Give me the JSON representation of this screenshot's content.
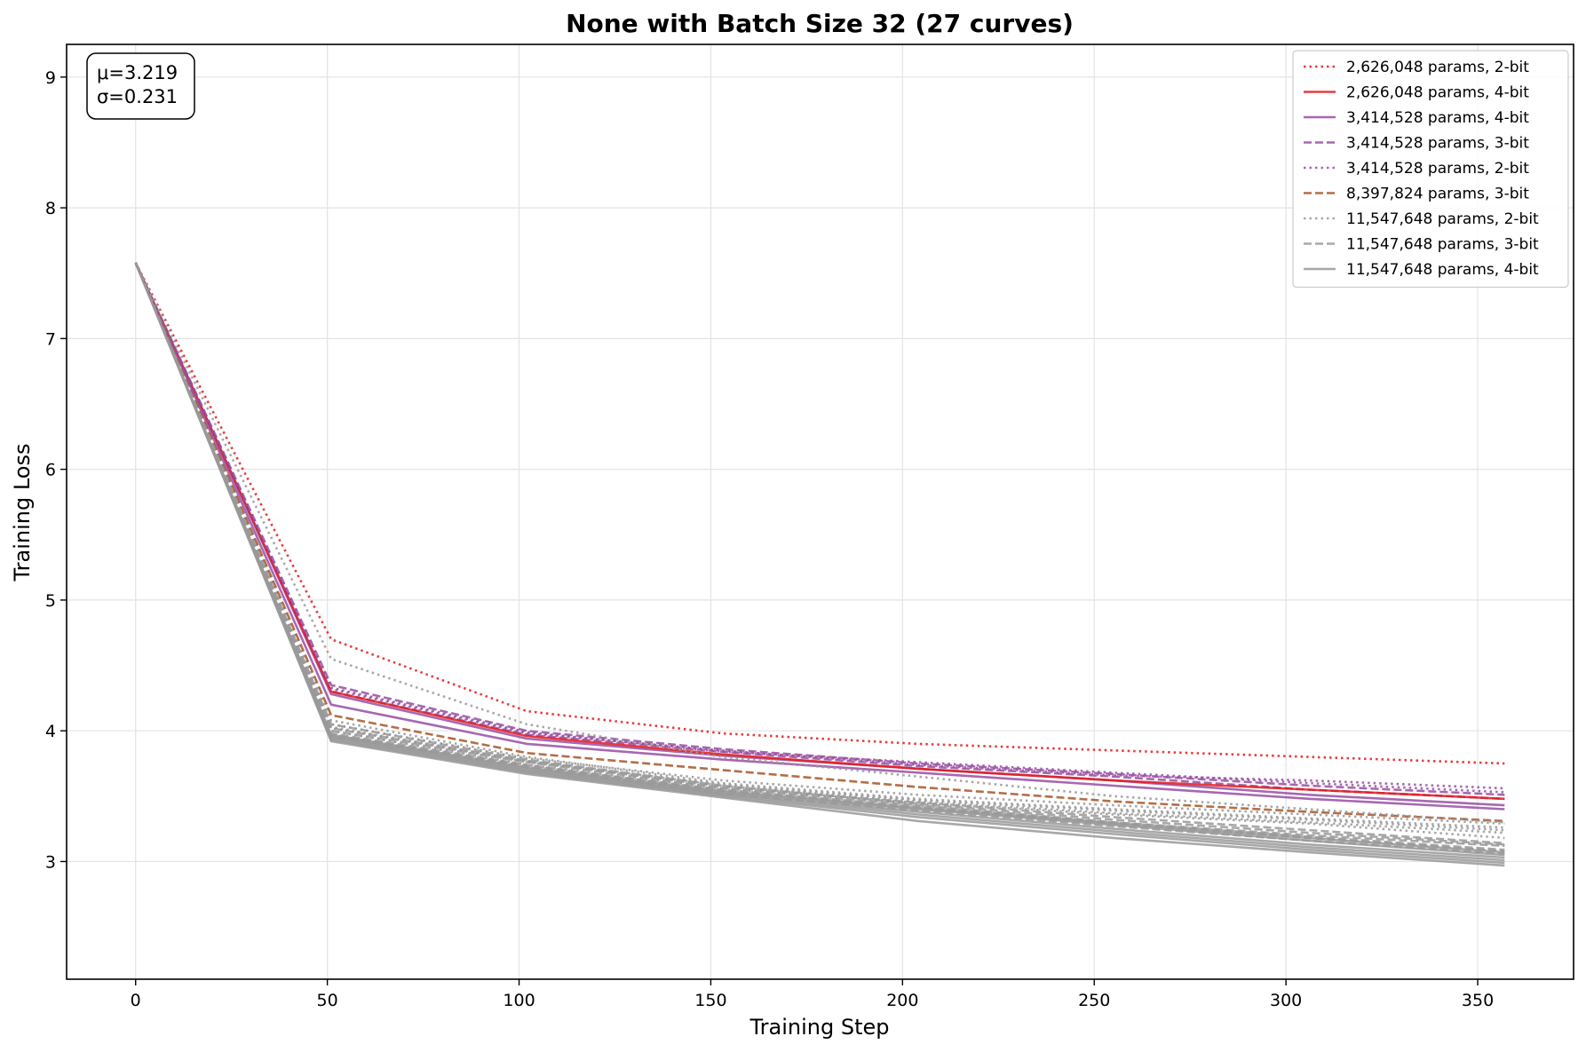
{
  "chart_data": {
    "type": "line",
    "title": "None with Batch Size 32 (27 curves)",
    "xlabel": "Training Step",
    "ylabel": "Training Loss",
    "xlim": [
      -18,
      375
    ],
    "ylim": [
      2.1,
      9.25
    ],
    "xticks": [
      0,
      50,
      100,
      150,
      200,
      250,
      300,
      350
    ],
    "yticks": [
      3,
      4,
      5,
      6,
      7,
      8,
      9
    ],
    "grid": true,
    "legend_position": "top-right",
    "stats": {
      "mu": "μ=3.219",
      "sigma": "σ=0.231"
    },
    "x": [
      0,
      51,
      102,
      153,
      204,
      255,
      306,
      357
    ],
    "series": [
      {
        "name": "2,626,048 params, 2-bit",
        "color": "#e41a1c",
        "dash": "dotted",
        "legend": true,
        "values": [
          7.58,
          4.7,
          4.15,
          3.98,
          3.9,
          3.85,
          3.8,
          3.75
        ]
      },
      {
        "name": "2,626,048 params, 4-bit",
        "color": "#e41a1c",
        "dash": "solid",
        "legend": true,
        "values": [
          7.58,
          4.3,
          3.96,
          3.82,
          3.71,
          3.62,
          3.55,
          3.48
        ]
      },
      {
        "name": "3,414,528 params, 4-bit",
        "color": "#984ea3",
        "dash": "solid",
        "legend": true,
        "values": [
          7.58,
          4.2,
          3.9,
          3.78,
          3.68,
          3.58,
          3.48,
          3.4
        ]
      },
      {
        "name": "3,414,528 params, 3-bit",
        "color": "#984ea3",
        "dash": "dashed",
        "legend": true,
        "values": [
          7.58,
          4.35,
          4.0,
          3.86,
          3.75,
          3.67,
          3.58,
          3.51
        ]
      },
      {
        "name": "3,414,528 params, 2-bit",
        "color": "#984ea3",
        "dash": "dotted",
        "legend": true,
        "values": [
          7.58,
          4.32,
          3.98,
          3.85,
          3.74,
          3.66,
          3.62,
          3.56
        ]
      },
      {
        "name": "8,397,824 params, 3-bit",
        "color": "#a65628",
        "dash": "dashed",
        "legend": true,
        "values": [
          7.58,
          4.12,
          3.83,
          3.7,
          3.57,
          3.46,
          3.38,
          3.31
        ]
      },
      {
        "name": "11,547,648 params, 2-bit",
        "color": "#999999",
        "dash": "dotted",
        "legend": true,
        "values": [
          7.58,
          4.55,
          4.05,
          3.8,
          3.65,
          3.5,
          3.4,
          3.3
        ]
      },
      {
        "name": "11,547,648 params, 3-bit",
        "color": "#999999",
        "dash": "dashed",
        "legend": true,
        "values": [
          7.58,
          4.05,
          3.78,
          3.58,
          3.44,
          3.32,
          3.22,
          3.13
        ]
      },
      {
        "name": "11,547,648 params, 4-bit",
        "color": "#999999",
        "dash": "solid",
        "legend": true,
        "values": [
          7.58,
          3.92,
          3.67,
          3.49,
          3.31,
          3.18,
          3.07,
          2.97
        ]
      },
      {
        "color": "#984ea3",
        "dash": "solid",
        "legend": false,
        "values": [
          7.58,
          4.28,
          3.94,
          3.81,
          3.71,
          3.62,
          3.51,
          3.43
        ]
      },
      {
        "color": "#984ea3",
        "dash": "dashed",
        "legend": false,
        "values": [
          7.58,
          4.3,
          3.97,
          3.84,
          3.73,
          3.65,
          3.55,
          3.48
        ]
      },
      {
        "color": "#984ea3",
        "dash": "dotted",
        "legend": false,
        "values": [
          7.58,
          4.33,
          3.99,
          3.84,
          3.76,
          3.68,
          3.6,
          3.53
        ]
      },
      {
        "color": "#999999",
        "dash": "dotted",
        "legend": false,
        "values": [
          7.58,
          4.08,
          3.8,
          3.6,
          3.48,
          3.4,
          3.33,
          3.26
        ]
      },
      {
        "color": "#999999",
        "dash": "dotted",
        "legend": false,
        "values": [
          7.58,
          4.02,
          3.76,
          3.58,
          3.46,
          3.37,
          3.3,
          3.22
        ]
      },
      {
        "color": "#999999",
        "dash": "dotted",
        "legend": false,
        "values": [
          7.58,
          4.05,
          3.79,
          3.62,
          3.51,
          3.43,
          3.36,
          3.29
        ]
      },
      {
        "color": "#999999",
        "dash": "dotted",
        "legend": false,
        "values": [
          7.58,
          4.0,
          3.74,
          3.56,
          3.45,
          3.36,
          3.29,
          3.18
        ]
      },
      {
        "color": "#999999",
        "dash": "dotted",
        "legend": false,
        "values": [
          7.58,
          4.03,
          3.77,
          3.59,
          3.47,
          3.39,
          3.32,
          3.24
        ]
      },
      {
        "color": "#999999",
        "dash": "dashed",
        "legend": false,
        "values": [
          7.58,
          4.0,
          3.76,
          3.56,
          3.43,
          3.3,
          3.2,
          3.12
        ]
      },
      {
        "color": "#999999",
        "dash": "dashed",
        "legend": false,
        "values": [
          7.58,
          3.98,
          3.74,
          3.54,
          3.41,
          3.29,
          3.18,
          3.08
        ]
      },
      {
        "color": "#999999",
        "dash": "dashed",
        "legend": false,
        "values": [
          7.58,
          3.96,
          3.72,
          3.52,
          3.39,
          3.27,
          3.16,
          3.06
        ]
      },
      {
        "color": "#999999",
        "dash": "dashed",
        "legend": false,
        "values": [
          7.58,
          4.02,
          3.77,
          3.57,
          3.45,
          3.34,
          3.24,
          3.14
        ]
      },
      {
        "color": "#999999",
        "dash": "dashed",
        "legend": false,
        "values": [
          7.58,
          3.97,
          3.73,
          3.55,
          3.42,
          3.3,
          3.19,
          3.09
        ]
      },
      {
        "color": "#999999",
        "dash": "solid",
        "legend": false,
        "values": [
          7.58,
          3.95,
          3.7,
          3.52,
          3.38,
          3.25,
          3.13,
          3.03
        ]
      },
      {
        "color": "#999999",
        "dash": "solid",
        "legend": false,
        "values": [
          7.58,
          3.94,
          3.69,
          3.51,
          3.36,
          3.23,
          3.11,
          3.01
        ]
      },
      {
        "color": "#999999",
        "dash": "solid",
        "legend": false,
        "values": [
          7.58,
          3.96,
          3.71,
          3.53,
          3.4,
          3.28,
          3.16,
          3.05
        ]
      },
      {
        "color": "#999999",
        "dash": "solid",
        "legend": false,
        "values": [
          7.58,
          3.93,
          3.68,
          3.5,
          3.34,
          3.21,
          3.09,
          2.99
        ]
      },
      {
        "color": "#999999",
        "dash": "solid",
        "legend": false,
        "values": [
          7.58,
          3.97,
          3.72,
          3.54,
          3.41,
          3.29,
          3.18,
          3.07
        ]
      }
    ]
  }
}
